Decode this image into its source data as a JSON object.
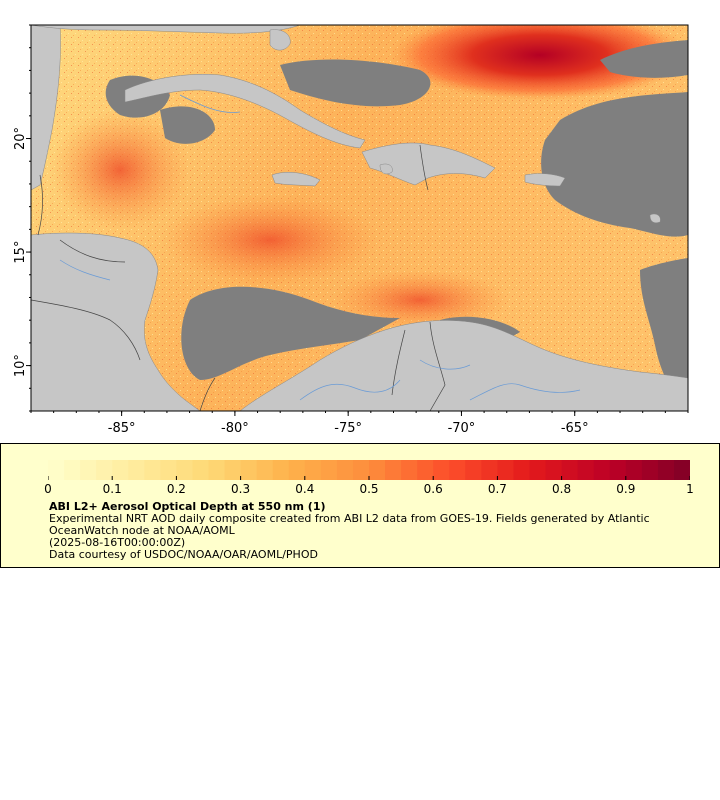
{
  "map": {
    "lon_range": [
      -89,
      -60
    ],
    "lat_range": [
      8,
      25
    ],
    "lon_ticks": [
      {
        "value": -85,
        "label": "-85°"
      },
      {
        "value": -80,
        "label": "-80°"
      },
      {
        "value": -75,
        "label": "-75°"
      },
      {
        "value": -70,
        "label": "-70°"
      },
      {
        "value": -65,
        "label": "-65°"
      }
    ],
    "lat_ticks": [
      {
        "value": 10,
        "label": "10°"
      },
      {
        "value": 15,
        "label": "15°"
      },
      {
        "value": 20,
        "label": "20°"
      }
    ],
    "colors": {
      "land": "#c6c6c6",
      "no_data": "#7f7f7f",
      "aod_low": "#ffffcc",
      "aod_mid": "#fd8d3c",
      "aod_high": "#800026",
      "rivers": "#6a9bd6",
      "borders": "#555555"
    }
  },
  "legend": {
    "colorbar": {
      "min": 0,
      "max": 1,
      "steps": 40,
      "ticks": [
        "0",
        "0.1",
        "0.2",
        "0.3",
        "0.4",
        "0.5",
        "0.6",
        "0.7",
        "0.8",
        "0.9",
        "1"
      ],
      "stops": [
        "#ffffcc",
        "#ffeda0",
        "#fed976",
        "#feb24c",
        "#fd8d3c",
        "#fc4e2a",
        "#e31a1c",
        "#bd0026",
        "#800026"
      ]
    },
    "title": "ABI L2+ Aerosol Optical Depth at 550 nm (1)",
    "description": "Experimental NRT AOD daily composite created from ABI L2 data from GOES-19. Fields generated by Atlantic OceanWatch node at NOAA/AOML",
    "time": "(2025-08-16T00:00:00Z)",
    "credit": "Data courtesy of USDOC/NOAA/OAR/AOML/PHOD"
  }
}
